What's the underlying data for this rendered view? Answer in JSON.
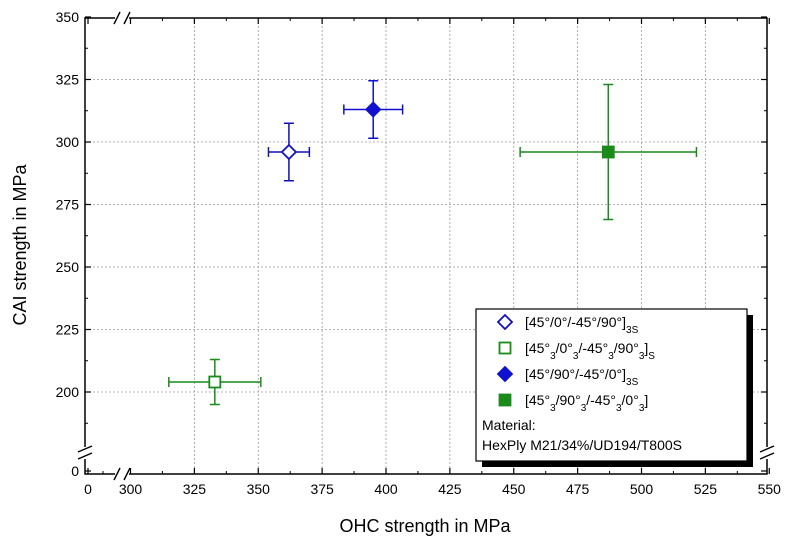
{
  "chart_data": {
    "type": "scatter",
    "xlabel": "OHC strength in MPa",
    "ylabel": "CAI strength in MPa",
    "x_ticks": [
      "0",
      "300",
      "325",
      "350",
      "375",
      "400",
      "425",
      "450",
      "475",
      "500",
      "525",
      "550"
    ],
    "y_ticks": [
      "0",
      "200",
      "225",
      "250",
      "275",
      "300",
      "325",
      "350"
    ],
    "xlim": [
      300,
      550
    ],
    "ylim": [
      175,
      350
    ],
    "x_axis_break": true,
    "y_axis_break": true,
    "grid": true,
    "legend_position": "bottom-right",
    "series": [
      {
        "name_parts": [
          {
            "t": "[45°/0°/-45°/90°]"
          },
          {
            "t": "3S",
            "sub": true
          }
        ],
        "color": "#1010c0",
        "marker": "diamond",
        "filled": false,
        "points": [
          {
            "x": 362,
            "y": 296,
            "xerr": 8,
            "yerr": 11.5
          }
        ]
      },
      {
        "name_parts": [
          {
            "t": "[45°"
          },
          {
            "t": "3",
            "sub": true
          },
          {
            "t": "/0°"
          },
          {
            "t": "3",
            "sub": true
          },
          {
            "t": "/-45°"
          },
          {
            "t": "3",
            "sub": true
          },
          {
            "t": "/90°"
          },
          {
            "t": "3",
            "sub": true
          },
          {
            "t": "]"
          },
          {
            "t": "S",
            "sub": true
          }
        ],
        "color": "#1a8a1a",
        "marker": "square",
        "filled": false,
        "points": [
          {
            "x": 333,
            "y": 204,
            "xerr": 18,
            "yerr": 9
          }
        ]
      },
      {
        "name_parts": [
          {
            "t": "[45°/90°/-45°/0°]"
          },
          {
            "t": "3S",
            "sub": true
          }
        ],
        "color": "#1010d0",
        "marker": "diamond",
        "filled": true,
        "points": [
          {
            "x": 395,
            "y": 313,
            "xerr": 11.5,
            "yerr": 11.5
          }
        ]
      },
      {
        "name_parts": [
          {
            "t": "[45°"
          },
          {
            "t": "3",
            "sub": true
          },
          {
            "t": "/90°"
          },
          {
            "t": "3",
            "sub": true
          },
          {
            "t": "/-45°"
          },
          {
            "t": "3",
            "sub": true
          },
          {
            "t": "/0°"
          },
          {
            "t": "3",
            "sub": true
          },
          {
            "t": "]"
          }
        ],
        "color": "#1a8a1a",
        "marker": "square",
        "filled": true,
        "points": [
          {
            "x": 487,
            "y": 296,
            "xerr": 34.5,
            "yerr": 27
          }
        ]
      }
    ],
    "annotation": [
      "Material:",
      "HexPly M21/34%/UD194/T800S"
    ]
  }
}
